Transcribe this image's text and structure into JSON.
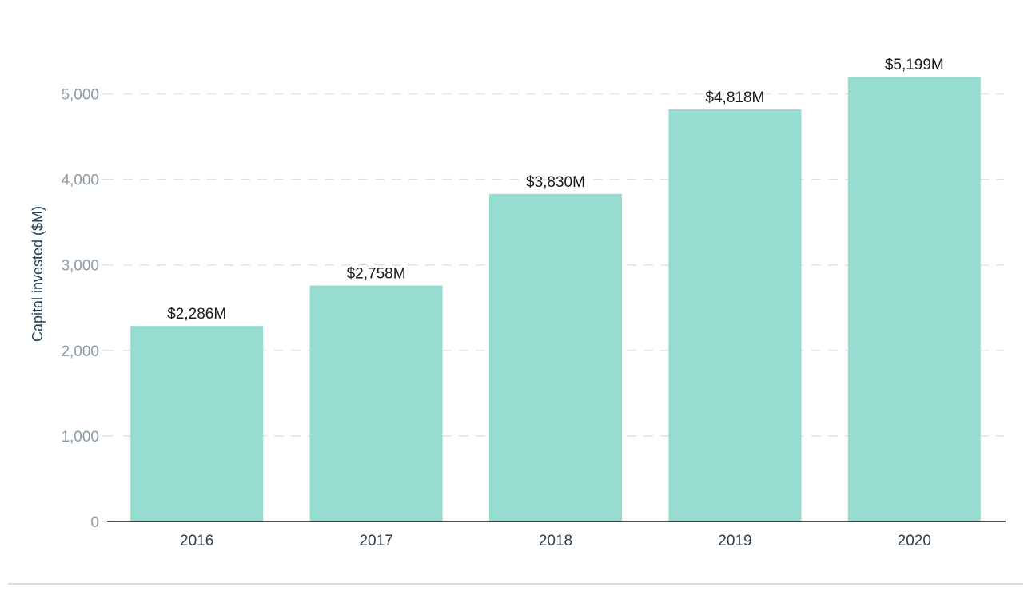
{
  "chart_data": {
    "type": "bar",
    "title": "",
    "xlabel": "",
    "ylabel": "Capital invested ($M)",
    "categories": [
      "2016",
      "2017",
      "2018",
      "2019",
      "2020"
    ],
    "values": [
      2286,
      2758,
      3830,
      4818,
      5199
    ],
    "data_labels": [
      "$2,286M",
      "$2,758M",
      "$3,830M",
      "$4,818M",
      "$5,199M"
    ],
    "ylim": [
      0,
      5500
    ],
    "yticks": [
      0,
      1000,
      2000,
      3000,
      4000,
      5000
    ],
    "ytick_labels": [
      "0",
      "1,000",
      "2,000",
      "3,000",
      "4,000",
      "5,000"
    ],
    "grid": true,
    "legend": "none",
    "colors": {
      "bar": "#96dcd1"
    }
  }
}
